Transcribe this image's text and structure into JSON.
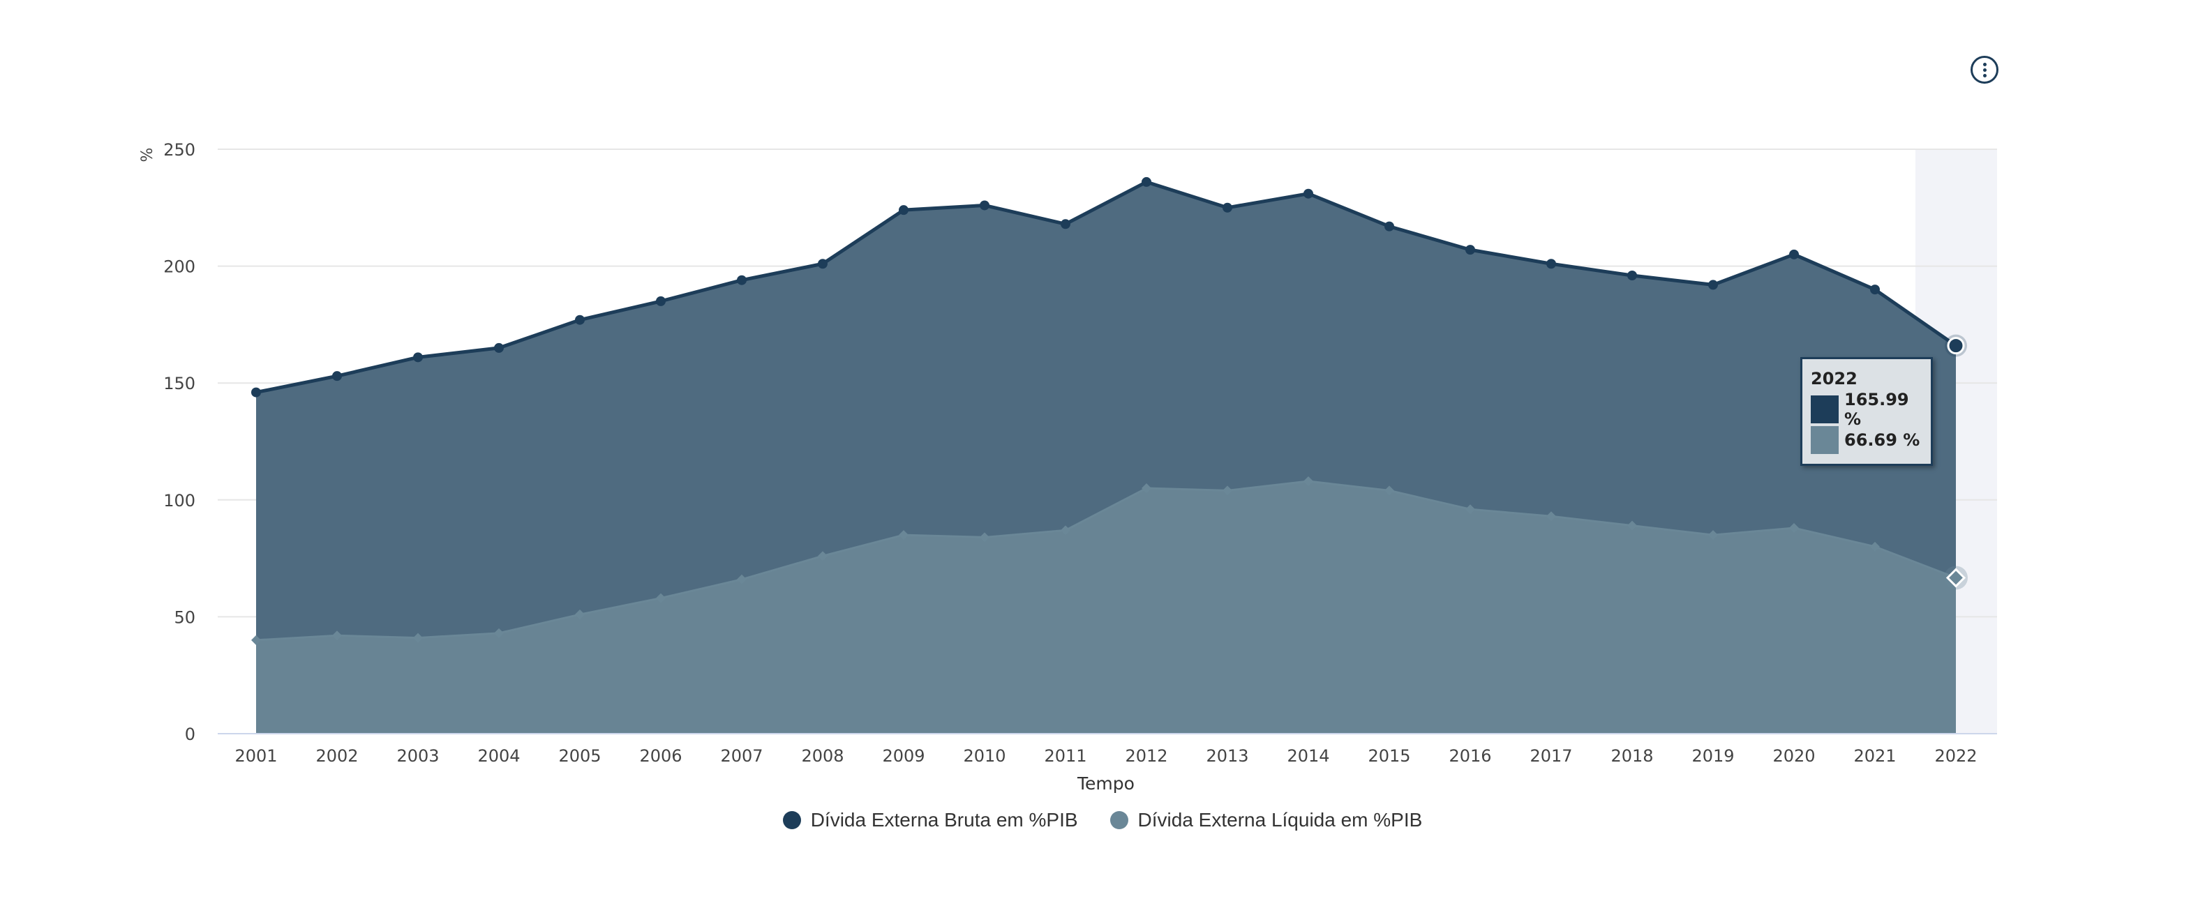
{
  "colors": {
    "gross_line": "#1d3d59",
    "gross_area": "#4f6b80",
    "net_line": "#6a8797",
    "net_area": "#688494",
    "highlight_band": "#f2f3f8",
    "grid": "#e6e6e6",
    "axis_text": "#444444"
  },
  "chart_data": {
    "type": "area",
    "title": "",
    "xlabel": "Tempo",
    "ylabel": "%",
    "ylim": [
      0,
      250
    ],
    "yticks": [
      0,
      50,
      100,
      150,
      200,
      250
    ],
    "x": [
      "2001",
      "2002",
      "2003",
      "2004",
      "2005",
      "2006",
      "2007",
      "2008",
      "2009",
      "2010",
      "2011",
      "2012",
      "2013",
      "2014",
      "2015",
      "2016",
      "2017",
      "2018",
      "2019",
      "2020",
      "2021",
      "2022"
    ],
    "series": [
      {
        "name": "Dívida Externa Bruta em %PIB",
        "color": "#1d3d59",
        "values": [
          146,
          153,
          161,
          165,
          177,
          185,
          194,
          201,
          224,
          226,
          218,
          236,
          225,
          231,
          217,
          207,
          201,
          196,
          192,
          205,
          190,
          165.99
        ]
      },
      {
        "name": "Dívida Externa Líquida em %PIB",
        "color": "#6a8797",
        "values": [
          40,
          42,
          41,
          43,
          51,
          58,
          66,
          76,
          85,
          84,
          87,
          105,
          104,
          108,
          104,
          96,
          93,
          89,
          85,
          88,
          80,
          66.69
        ]
      }
    ],
    "grid": true,
    "legend_position": "bottom-center",
    "highlighted_category": "2022"
  },
  "tooltip": {
    "year": "2022",
    "gross_value": "165.99 %",
    "net_value": "66.69 %"
  },
  "legend": {
    "gross_label": "Dívida Externa Bruta em %PIB",
    "net_label": "Dívida Externa Líquida em %PIB"
  },
  "menu": {
    "icon": "kebab-menu-icon"
  }
}
